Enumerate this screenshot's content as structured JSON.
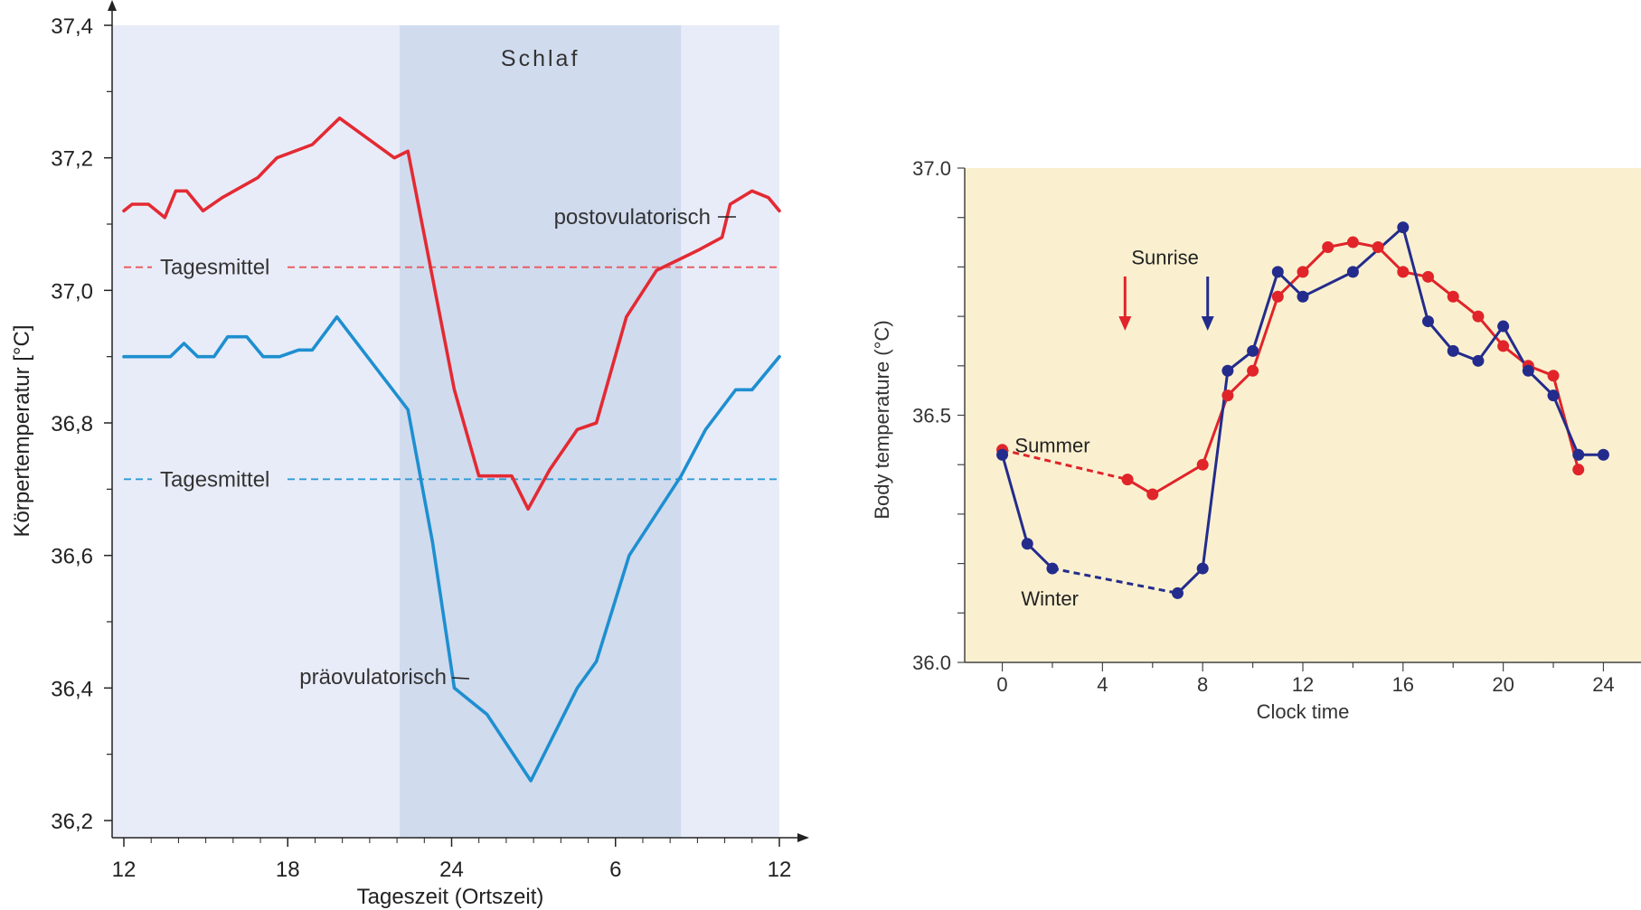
{
  "chart_data": [
    {
      "type": "line",
      "title": "",
      "xlabel": "Tageszeit (Ortszeit)",
      "ylabel": "Körpertemperatur [°C]",
      "ylim": [
        36.2,
        37.4
      ],
      "xlim": [
        0,
        24
      ],
      "x_ticks": [
        0,
        6,
        12,
        18,
        24
      ],
      "x_tick_labels": [
        "12",
        "18",
        "24",
        "6",
        "12"
      ],
      "y_ticks": [
        36.2,
        36.4,
        36.6,
        36.8,
        37.0,
        37.2,
        37.4
      ],
      "y_tick_labels": [
        "36,2",
        "36,4",
        "36,6",
        "36,8",
        "37,0",
        "37,2",
        "37,4"
      ],
      "grid": false,
      "background_color": "#e8ecf8",
      "shaded_band": {
        "x_start": 10.1,
        "x_end": 20.4,
        "label": "Schlaf",
        "color": "#d0dbee"
      },
      "reference_lines": [
        {
          "label": "Tagesmittel",
          "y": 37.035,
          "color": "#e8575d"
        },
        {
          "label": "Tagesmittel",
          "y": 36.715,
          "color": "#2e9bd6"
        }
      ],
      "series": [
        {
          "name": "postovulatorisch",
          "color": "#e32a33",
          "x": [
            0,
            0.3,
            0.9,
            1.5,
            1.9,
            2.3,
            2.9,
            3.6,
            4.9,
            5.6,
            6.9,
            7.9,
            8.9,
            9.9,
            10.4,
            12.1,
            13.0,
            14.2,
            14.8,
            15.6,
            16.6,
            17.3,
            18.4,
            19.5,
            21.0,
            21.9,
            22.2,
            23.0,
            23.6,
            24.0
          ],
          "values": [
            37.12,
            37.13,
            37.13,
            37.11,
            37.15,
            37.15,
            37.12,
            37.14,
            37.17,
            37.2,
            37.22,
            37.26,
            37.23,
            37.2,
            37.21,
            36.85,
            36.72,
            36.72,
            36.67,
            36.73,
            36.79,
            36.8,
            36.96,
            37.03,
            37.06,
            37.08,
            37.13,
            37.15,
            37.14,
            37.12
          ]
        },
        {
          "name": "präovulatorisch",
          "color": "#1e8fd0",
          "x": [
            0,
            1.7,
            2.2,
            2.7,
            3.3,
            3.8,
            4.5,
            5.1,
            5.7,
            6.4,
            6.9,
            7.8,
            10.4,
            11.3,
            12.1,
            13.3,
            14.9,
            16.6,
            17.3,
            18.5,
            20.4,
            21.3,
            22.4,
            23.0,
            24.0
          ],
          "values": [
            36.9,
            36.9,
            36.92,
            36.9,
            36.9,
            36.93,
            36.93,
            36.9,
            36.9,
            36.91,
            36.91,
            36.96,
            36.82,
            36.62,
            36.4,
            36.36,
            36.26,
            36.4,
            36.44,
            36.6,
            36.72,
            36.79,
            36.85,
            36.85,
            36.9
          ]
        }
      ]
    },
    {
      "type": "line",
      "title": "",
      "xlabel": "Clock time",
      "ylabel": "Body temperature (°C)",
      "xlim": [
        -1.5,
        25.5
      ],
      "ylim": [
        36.0,
        37.0
      ],
      "x_ticks": [
        0,
        4,
        8,
        12,
        16,
        20,
        24
      ],
      "x_tick_labels": [
        "0",
        "4",
        "8",
        "12",
        "16",
        "20",
        "24"
      ],
      "y_ticks": [
        36.0,
        36.5,
        37.0
      ],
      "y_tick_labels": [
        "36.0",
        "36.5",
        "37.0"
      ],
      "grid": false,
      "background_color": "#faf0cf",
      "annotations": [
        {
          "text": "Sunrise",
          "x": 6.5,
          "y": 36.82
        },
        {
          "text": "Summer",
          "x": 2.0,
          "y": 36.44
        },
        {
          "text": "Winter",
          "x": 1.9,
          "y": 36.13
        }
      ],
      "sunrise_arrows": [
        {
          "series": "Summer",
          "x": 4.9,
          "color": "#e0242a"
        },
        {
          "series": "Winter",
          "x": 8.2,
          "color": "#232c8c"
        }
      ],
      "series": [
        {
          "name": "Summer",
          "color": "#e0242a",
          "x": [
            0,
            5,
            6,
            8,
            9,
            10,
            11,
            12,
            13,
            14,
            15,
            16,
            17,
            18,
            19,
            20,
            21,
            22,
            23
          ],
          "values": [
            36.43,
            36.37,
            36.34,
            36.4,
            36.54,
            36.59,
            36.74,
            36.79,
            36.84,
            36.85,
            36.84,
            36.79,
            36.78,
            36.74,
            36.7,
            36.64,
            36.6,
            36.58,
            36.39
          ],
          "dashed_segments": [
            [
              0,
              5
            ]
          ]
        },
        {
          "name": "Winter",
          "color": "#232c8c",
          "x": [
            0,
            1,
            2,
            7,
            8,
            9,
            10,
            11,
            12,
            14,
            16,
            17,
            18,
            19,
            20,
            21,
            22,
            23,
            24
          ],
          "values": [
            36.42,
            36.24,
            36.19,
            36.14,
            36.19,
            36.59,
            36.63,
            36.79,
            36.74,
            36.79,
            36.88,
            36.69,
            36.63,
            36.61,
            36.68,
            36.59,
            36.54,
            36.42,
            36.42
          ],
          "dashed_segments": [
            [
              2,
              7
            ]
          ]
        }
      ]
    }
  ]
}
